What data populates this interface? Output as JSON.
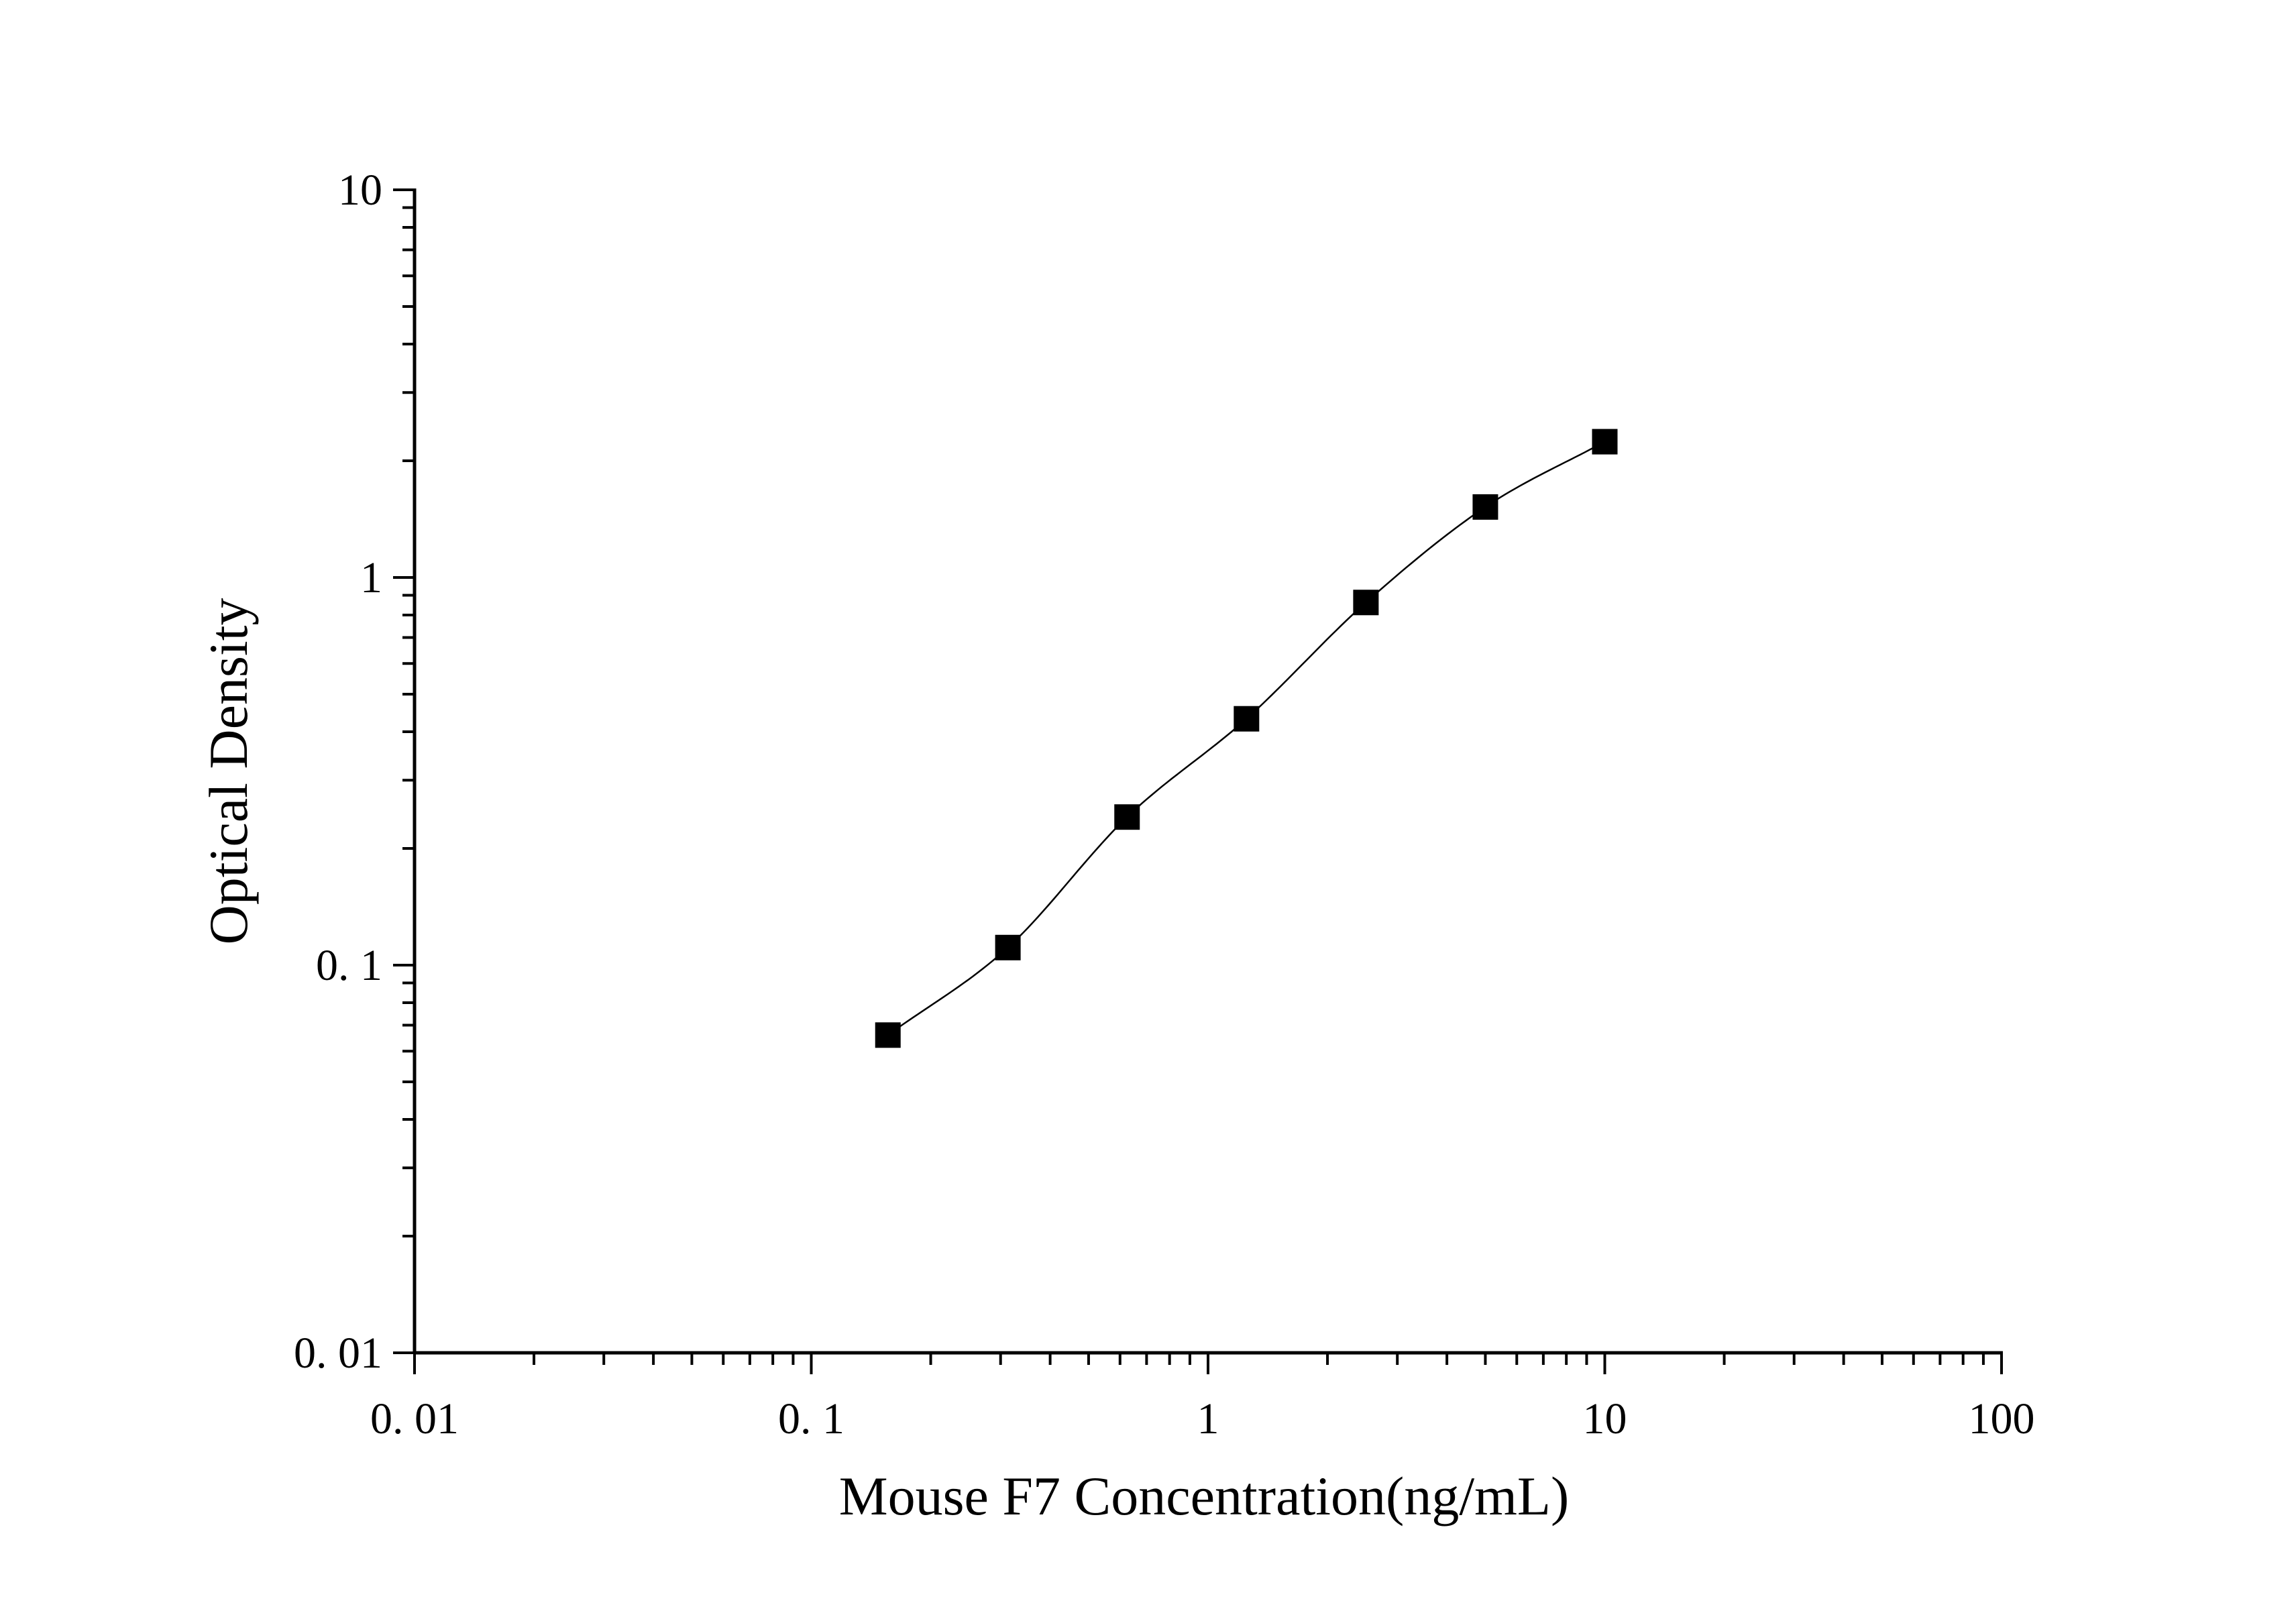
{
  "chart_data": {
    "type": "scatter",
    "xscale": "log",
    "yscale": "log",
    "xlabel": "Mouse F7 Concentration(ng/mL)",
    "ylabel": "Optical Density",
    "xlim": [
      0.01,
      100
    ],
    "ylim": [
      0.01,
      10
    ],
    "xticks": [
      {
        "value": 0.01,
        "label": "0. 01"
      },
      {
        "value": 0.1,
        "label": "0. 1"
      },
      {
        "value": 1,
        "label": "1"
      },
      {
        "value": 10,
        "label": "10"
      },
      {
        "value": 100,
        "label": "100"
      }
    ],
    "yticks": [
      {
        "value": 0.01,
        "label": "0. 01"
      },
      {
        "value": 0.1,
        "label": "0. 1"
      },
      {
        "value": 1,
        "label": "1"
      },
      {
        "value": 10,
        "label": "10"
      }
    ],
    "grid": false,
    "legend": "none",
    "series": [
      {
        "x": [
          0.156,
          0.313,
          0.625,
          1.25,
          2.5,
          5,
          10
        ],
        "y": [
          0.066,
          0.111,
          0.241,
          0.432,
          0.862,
          1.52,
          2.24
        ],
        "marker": "square",
        "color": "#000000",
        "fit": "smooth-curve"
      }
    ]
  }
}
